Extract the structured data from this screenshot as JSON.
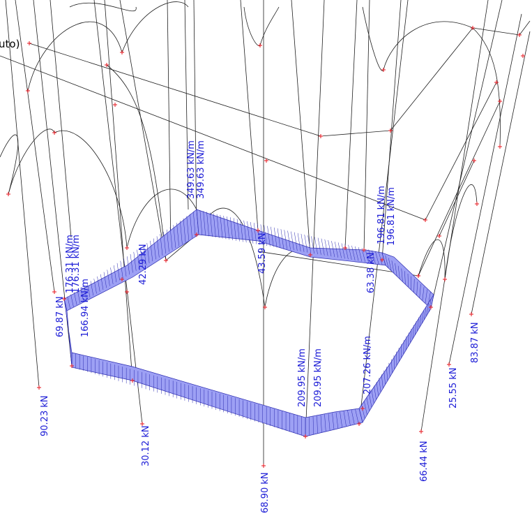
{
  "header": {
    "partial_title": "uto)"
  },
  "colors": {
    "wire": "#1e1e1e",
    "node": "#e8242b",
    "diagram_fill": "#9da0f4",
    "diagram_stroke": "#2b2bb0",
    "label": "#1a1ad6"
  },
  "labels": {
    "l1": "349.63 kN/m",
    "l2": "349.63 kN/m",
    "l3": "196.81 kN/m",
    "l4": "196.81 kN/m",
    "l5": "176.31 kN/m",
    "l6": "176.31 kN/m",
    "l7": "166.94 kN/m",
    "l8": "69.87 kN",
    "l9": "42.29 kN",
    "l10": "43.59 kN",
    "l11": "63.38 kN",
    "l12": "209.95 kN/m",
    "l13": "209.95 kN/m",
    "l14": "207.26 kN/m",
    "l15": "90.23 kN",
    "l16": "30.12 kN",
    "l17": "68.90 kN",
    "l18": "66.44 kN",
    "l19": "25.55 kN",
    "l20": "83.87 kN"
  }
}
